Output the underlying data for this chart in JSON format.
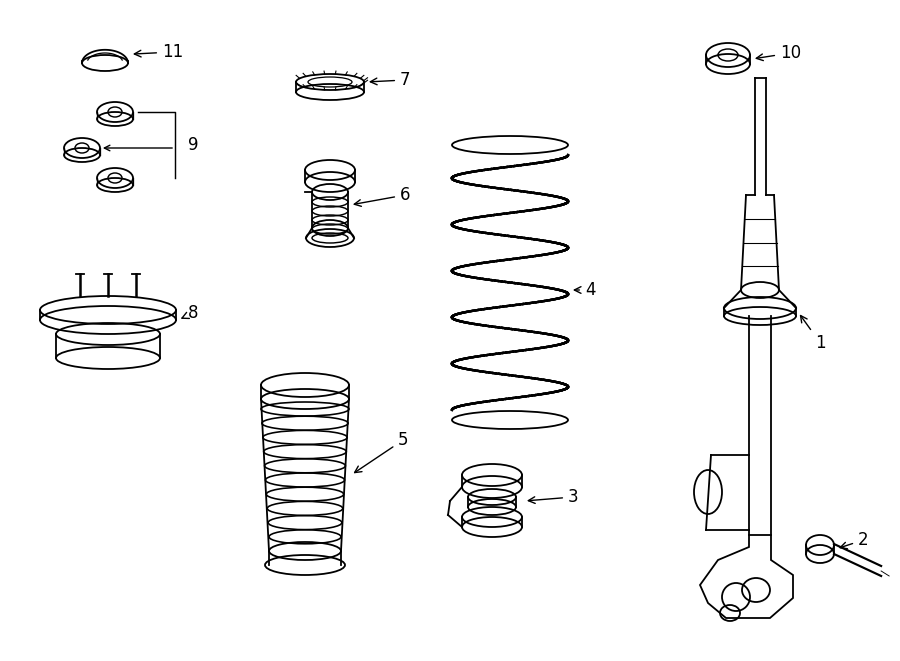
{
  "background": "#ffffff",
  "line_color": "#000000",
  "line_width": 1.3,
  "label_fontsize": 12,
  "figsize": [
    9.0,
    6.61
  ],
  "dpi": 100
}
